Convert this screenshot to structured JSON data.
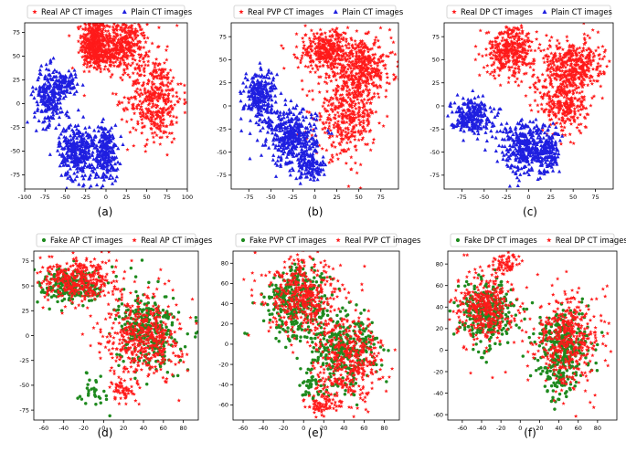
{
  "colors": {
    "red": "#ff1a1a",
    "blue": "#1f1fe0",
    "green": "#1e8a1e",
    "axis": "#000000",
    "legend_border": "#cccccc"
  },
  "chart_data": [
    {
      "type": "scatter",
      "panel_label": "(a)",
      "legend": [
        "Real AP CT images",
        "Plain CT images"
      ],
      "series": [
        {
          "name": "Real AP CT images",
          "marker": "star",
          "color": "red",
          "clusters": [
            [
              -15,
              65,
              10,
              18,
              380
            ],
            [
              20,
              62,
              20,
              18,
              380
            ],
            [
              60,
              5,
              22,
              30,
              420
            ],
            [
              -5,
              50,
              15,
              8,
              120
            ]
          ]
        },
        {
          "name": "Plain CT images",
          "marker": "triangle",
          "color": "blue",
          "clusters": [
            [
              -70,
              8,
              12,
              20,
              230
            ],
            [
              -50,
              20,
              10,
              8,
              100
            ],
            [
              -35,
              -50,
              15,
              20,
              320
            ],
            [
              0,
              -52,
              10,
              20,
              220
            ]
          ]
        }
      ],
      "xlim": [
        -100,
        100
      ],
      "ylim": [
        -90,
        85
      ],
      "xticks": [
        -100,
        -75,
        -50,
        -25,
        0,
        25,
        50,
        75,
        100
      ],
      "yticks": [
        -75,
        -50,
        -25,
        0,
        25,
        50,
        75
      ]
    },
    {
      "type": "scatter",
      "panel_label": "(b)",
      "legend": [
        "Real PVP CT images",
        "Plain CT images"
      ],
      "series": [
        {
          "name": "Real PVP CT images",
          "marker": "star",
          "color": "red",
          "clusters": [
            [
              15,
              60,
              22,
              15,
              380
            ],
            [
              55,
              40,
              22,
              20,
              360
            ],
            [
              35,
              -10,
              22,
              30,
              420
            ]
          ]
        },
        {
          "name": "Plain CT images",
          "marker": "triangle",
          "color": "blue",
          "clusters": [
            [
              -62,
              10,
              12,
              20,
              250
            ],
            [
              -25,
              -35,
              18,
              20,
              380
            ],
            [
              -5,
              -65,
              12,
              10,
              120
            ]
          ]
        }
      ],
      "xlim": [
        -95,
        95
      ],
      "ylim": [
        -90,
        90
      ],
      "xticks": [
        -75,
        -50,
        -25,
        0,
        25,
        50,
        75
      ],
      "yticks": [
        -75,
        -50,
        -25,
        0,
        25,
        50,
        75
      ]
    },
    {
      "type": "scatter",
      "panel_label": "(c)",
      "legend": [
        "Real DP CT images",
        "Plain CT images"
      ],
      "series": [
        {
          "name": "Real DP CT images",
          "marker": "star",
          "color": "red",
          "clusters": [
            [
              -20,
              60,
              18,
              18,
              380
            ],
            [
              50,
              45,
              22,
              18,
              380
            ],
            [
              40,
              5,
              18,
              25,
              340
            ]
          ]
        },
        {
          "name": "Plain CT images",
          "marker": "triangle",
          "color": "blue",
          "clusters": [
            [
              -65,
              -10,
              15,
              12,
              240
            ],
            [
              -5,
              -45,
              20,
              20,
              340
            ],
            [
              20,
              -50,
              10,
              15,
              150
            ]
          ]
        }
      ],
      "xlim": [
        -95,
        95
      ],
      "ylim": [
        -90,
        90
      ],
      "xticks": [
        -75,
        -50,
        -25,
        0,
        25,
        50,
        75
      ],
      "yticks": [
        -75,
        -50,
        -25,
        0,
        25,
        50,
        75
      ]
    },
    {
      "type": "scatter",
      "panel_label": "(d)",
      "legend": [
        "Fake AP CT images",
        "Real AP CT images"
      ],
      "series": [
        {
          "name": "Fake AP CT images",
          "marker": "circle",
          "color": "green",
          "clusters": [
            [
              -30,
              50,
              22,
              12,
              220
            ],
            [
              45,
              5,
              20,
              25,
              330
            ],
            [
              -10,
              -55,
              8,
              12,
              30
            ]
          ]
        },
        {
          "name": "Real AP CT images",
          "marker": "star",
          "color": "red",
          "clusters": [
            [
              -25,
              55,
              25,
              14,
              360
            ],
            [
              40,
              0,
              25,
              28,
              480
            ],
            [
              20,
              -55,
              10,
              8,
              60
            ]
          ]
        }
      ],
      "xlim": [
        -70,
        95
      ],
      "ylim": [
        -85,
        85
      ],
      "xticks": [
        -60,
        -40,
        -20,
        0,
        20,
        40,
        60,
        80
      ],
      "yticks": [
        -75,
        -50,
        -25,
        0,
        25,
        50,
        75
      ]
    },
    {
      "type": "scatter",
      "panel_label": "(e)",
      "legend": [
        "Fake PVP CT images",
        "Real PVP CT images"
      ],
      "series": [
        {
          "name": "Fake PVP CT images",
          "marker": "circle",
          "color": "green",
          "clusters": [
            [
              -5,
              40,
              22,
              25,
              330
            ],
            [
              40,
              -5,
              22,
              25,
              300
            ],
            [
              5,
              -40,
              10,
              10,
              40
            ]
          ]
        },
        {
          "name": "Real PVP CT images",
          "marker": "star",
          "color": "red",
          "clusters": [
            [
              0,
              45,
              25,
              25,
              420
            ],
            [
              45,
              -15,
              22,
              28,
              420
            ],
            [
              20,
              -60,
              12,
              8,
              80
            ]
          ]
        }
      ],
      "xlim": [
        -70,
        95
      ],
      "ylim": [
        -75,
        92
      ],
      "xticks": [
        -60,
        -40,
        -20,
        0,
        20,
        40,
        60,
        80
      ],
      "yticks": [
        -60,
        -40,
        -20,
        0,
        20,
        40,
        60,
        80
      ]
    },
    {
      "type": "scatter",
      "panel_label": "(f)",
      "legend": [
        "Fake DP CT images",
        "Real DP CT images"
      ],
      "series": [
        {
          "name": "Fake DP CT images",
          "marker": "circle",
          "color": "green",
          "clusters": [
            [
              -35,
              35,
              18,
              20,
              300
            ],
            [
              45,
              5,
              18,
              22,
              300
            ],
            [
              40,
              -30,
              10,
              12,
              60
            ]
          ]
        },
        {
          "name": "Real DP CT images",
          "marker": "star",
          "color": "red",
          "clusters": [
            [
              -35,
              40,
              20,
              22,
              380
            ],
            [
              50,
              10,
              22,
              28,
              420
            ],
            [
              -15,
              80,
              8,
              6,
              60
            ]
          ]
        }
      ],
      "xlim": [
        -75,
        100
      ],
      "ylim": [
        -65,
        92
      ],
      "xticks": [
        -60,
        -40,
        -20,
        0,
        20,
        40,
        60,
        80
      ],
      "yticks": [
        -60,
        -40,
        -20,
        0,
        20,
        40,
        60,
        80
      ]
    }
  ]
}
